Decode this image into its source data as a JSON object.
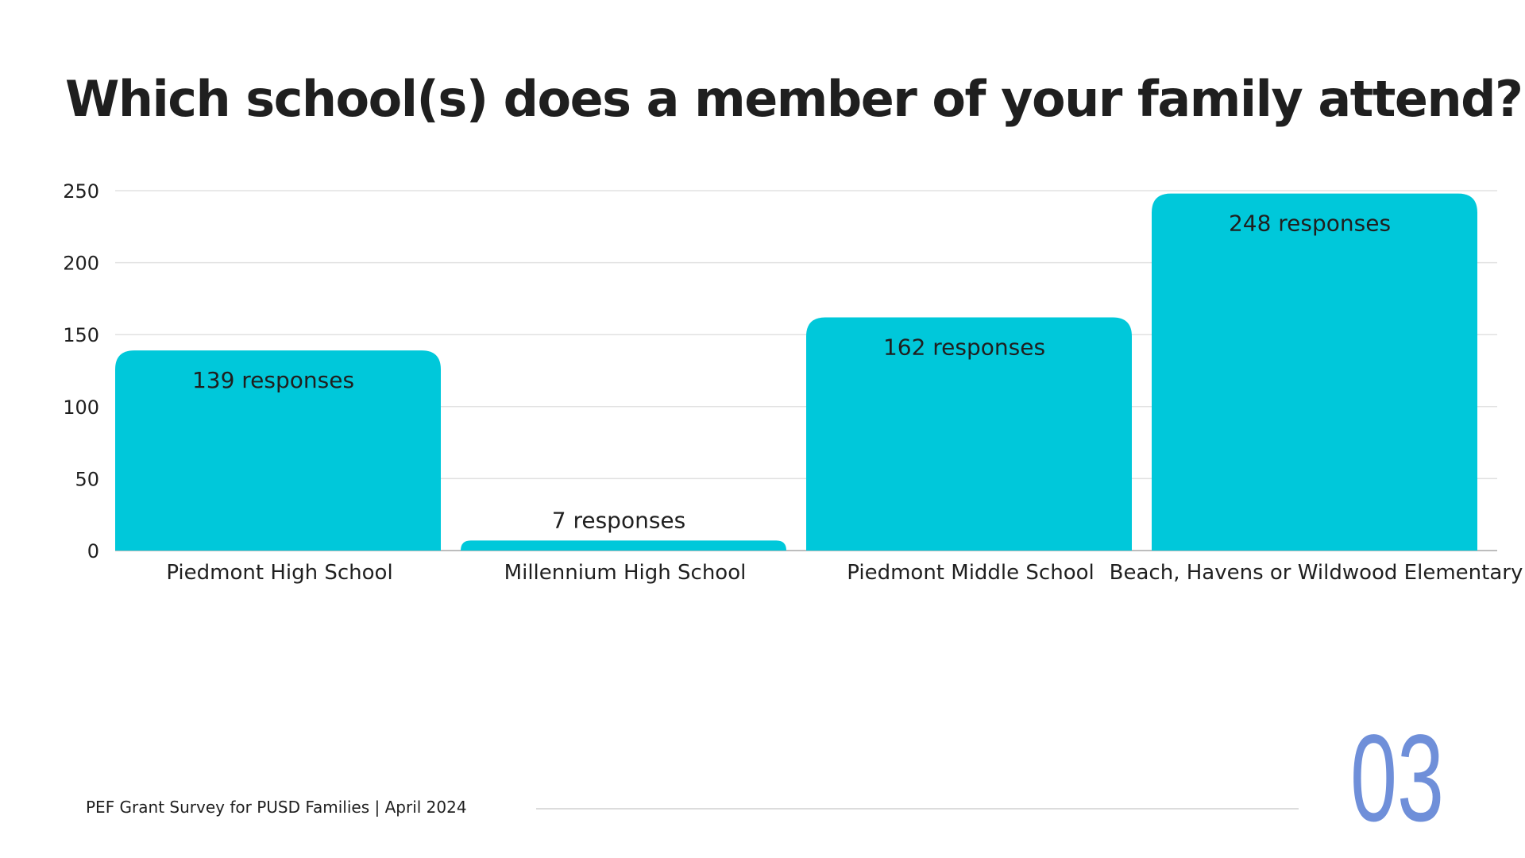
{
  "slide": {
    "title": "Which school(s) does a member of your family attend?",
    "footer": "PEF Grant Survey for PUSD Families | April 2024",
    "page_number": "03",
    "accent_color": "#6f8fd9"
  },
  "chart_data": {
    "type": "bar",
    "title": "Which school(s) does a member of your family attend?",
    "categories": [
      "Piedmont High School",
      "Millennium High School",
      "Piedmont Middle School",
      "Beach, Havens or Wildwood Elementary"
    ],
    "values": [
      139,
      7,
      162,
      248
    ],
    "data_labels": [
      "139 responses",
      "7 responses",
      "162 responses",
      "248 responses"
    ],
    "xlabel": "",
    "ylabel": "",
    "ylim": [
      0,
      250
    ],
    "yticks": [
      0,
      50,
      100,
      150,
      200,
      250
    ],
    "grid": true,
    "legend": "none",
    "bar_color": "#00c8da"
  }
}
